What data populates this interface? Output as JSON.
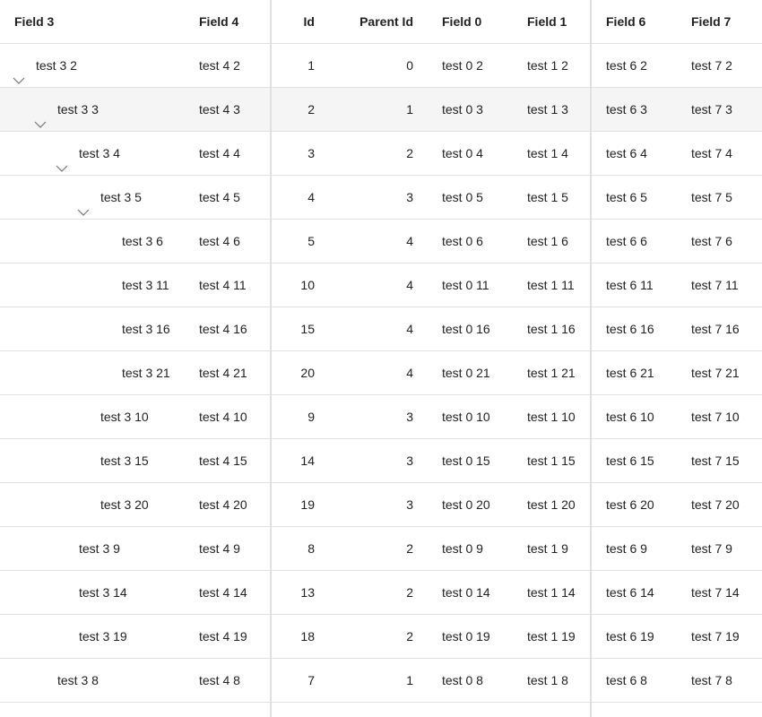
{
  "columns": {
    "field3": "Field 3",
    "field4": "Field 4",
    "id": "Id",
    "parent_id": "Parent Id",
    "field0": "Field 0",
    "field1": "Field 1",
    "field6": "Field 6",
    "field7": "Field 7"
  },
  "rows": [
    {
      "level": 0,
      "expandable": true,
      "selected": false,
      "field3": "test 3 2",
      "field4": "test 4 2",
      "id": "1",
      "parent_id": "0",
      "field0": "test 0 2",
      "field1": "test 1 2",
      "field6": "test 6 2",
      "field7": "test 7 2"
    },
    {
      "level": 1,
      "expandable": true,
      "selected": true,
      "field3": "test 3 3",
      "field4": "test 4 3",
      "id": "2",
      "parent_id": "1",
      "field0": "test 0 3",
      "field1": "test 1 3",
      "field6": "test 6 3",
      "field7": "test 7 3"
    },
    {
      "level": 2,
      "expandable": true,
      "selected": false,
      "field3": "test 3 4",
      "field4": "test 4 4",
      "id": "3",
      "parent_id": "2",
      "field0": "test 0 4",
      "field1": "test 1 4",
      "field6": "test 6 4",
      "field7": "test 7 4"
    },
    {
      "level": 3,
      "expandable": true,
      "selected": false,
      "field3": "test 3 5",
      "field4": "test 4 5",
      "id": "4",
      "parent_id": "3",
      "field0": "test 0 5",
      "field1": "test 1 5",
      "field6": "test 6 5",
      "field7": "test 7 5"
    },
    {
      "level": 4,
      "expandable": false,
      "selected": false,
      "field3": "test 3 6",
      "field4": "test 4 6",
      "id": "5",
      "parent_id": "4",
      "field0": "test 0 6",
      "field1": "test 1 6",
      "field6": "test 6 6",
      "field7": "test 7 6"
    },
    {
      "level": 4,
      "expandable": false,
      "selected": false,
      "field3": "test 3 11",
      "field4": "test 4 11",
      "id": "10",
      "parent_id": "4",
      "field0": "test 0 11",
      "field1": "test 1 11",
      "field6": "test 6 11",
      "field7": "test 7 11"
    },
    {
      "level": 4,
      "expandable": false,
      "selected": false,
      "field3": "test 3 16",
      "field4": "test 4 16",
      "id": "15",
      "parent_id": "4",
      "field0": "test 0 16",
      "field1": "test 1 16",
      "field6": "test 6 16",
      "field7": "test 7 16"
    },
    {
      "level": 4,
      "expandable": false,
      "selected": false,
      "field3": "test 3 21",
      "field4": "test 4 21",
      "id": "20",
      "parent_id": "4",
      "field0": "test 0 21",
      "field1": "test 1 21",
      "field6": "test 6 21",
      "field7": "test 7 21"
    },
    {
      "level": 3,
      "expandable": false,
      "selected": false,
      "field3": "test 3 10",
      "field4": "test 4 10",
      "id": "9",
      "parent_id": "3",
      "field0": "test 0 10",
      "field1": "test 1 10",
      "field6": "test 6 10",
      "field7": "test 7 10"
    },
    {
      "level": 3,
      "expandable": false,
      "selected": false,
      "field3": "test 3 15",
      "field4": "test 4 15",
      "id": "14",
      "parent_id": "3",
      "field0": "test 0 15",
      "field1": "test 1 15",
      "field6": "test 6 15",
      "field7": "test 7 15"
    },
    {
      "level": 3,
      "expandable": false,
      "selected": false,
      "field3": "test 3 20",
      "field4": "test 4 20",
      "id": "19",
      "parent_id": "3",
      "field0": "test 0 20",
      "field1": "test 1 20",
      "field6": "test 6 20",
      "field7": "test 7 20"
    },
    {
      "level": 2,
      "expandable": false,
      "selected": false,
      "field3": "test 3 9",
      "field4": "test 4 9",
      "id": "8",
      "parent_id": "2",
      "field0": "test 0 9",
      "field1": "test 1 9",
      "field6": "test 6 9",
      "field7": "test 7 9"
    },
    {
      "level": 2,
      "expandable": false,
      "selected": false,
      "field3": "test 3 14",
      "field4": "test 4 14",
      "id": "13",
      "parent_id": "2",
      "field0": "test 0 14",
      "field1": "test 1 14",
      "field6": "test 6 14",
      "field7": "test 7 14"
    },
    {
      "level": 2,
      "expandable": false,
      "selected": false,
      "field3": "test 3 19",
      "field4": "test 4 19",
      "id": "18",
      "parent_id": "2",
      "field0": "test 0 19",
      "field1": "test 1 19",
      "field6": "test 6 19",
      "field7": "test 7 19"
    },
    {
      "level": 1,
      "expandable": false,
      "selected": false,
      "field3": "test 3 8",
      "field4": "test 4 8",
      "id": "7",
      "parent_id": "1",
      "field0": "test 0 8",
      "field1": "test 1 8",
      "field6": "test 6 8",
      "field7": "test 7 8"
    }
  ],
  "icons": {
    "expand_collapse": "chevron-down-icon"
  },
  "colors": {
    "border": "#e0e0e0",
    "selected_row": "#f5f5f5",
    "text": "#212121",
    "chevron": "#757575"
  }
}
